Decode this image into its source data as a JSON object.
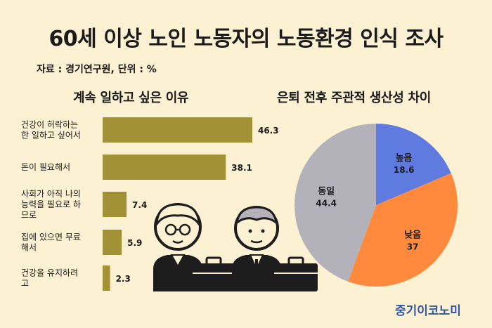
{
  "title": "60세 이상 노인 노동자의 노동환경 인식 조사",
  "source": "자료 : 경기연구원, 단위 : %",
  "brand": "중기이코노미",
  "colors": {
    "background": "#fcf1d2",
    "bar": "#a39235",
    "pie_high": "#5f7be0",
    "pie_low": "#ff8a3d",
    "pie_same": "#b3b2ba"
  },
  "chart_data": [
    {
      "type": "bar",
      "orientation": "horizontal",
      "title": "계속 일하고 싶은 이유",
      "categories": [
        [
          "건강이 허락하는",
          "한 일하고 싶어서"
        ],
        [
          "돈이 필요해서"
        ],
        [
          "사회가 아직 나의",
          "능력을 필요로 하",
          "므로"
        ],
        [
          "집에 있으면 무료",
          "해서"
        ],
        [
          "건강을 유지하려",
          "고"
        ]
      ],
      "values": [
        46.3,
        38.1,
        7.4,
        5.9,
        2.3
      ],
      "xlim": [
        0,
        50
      ]
    },
    {
      "type": "pie",
      "title": "은퇴 전후 주관적 생산성 차이",
      "labels": [
        "높음",
        "낮음",
        "동일"
      ],
      "values": [
        18.6,
        37,
        44.4
      ]
    }
  ]
}
